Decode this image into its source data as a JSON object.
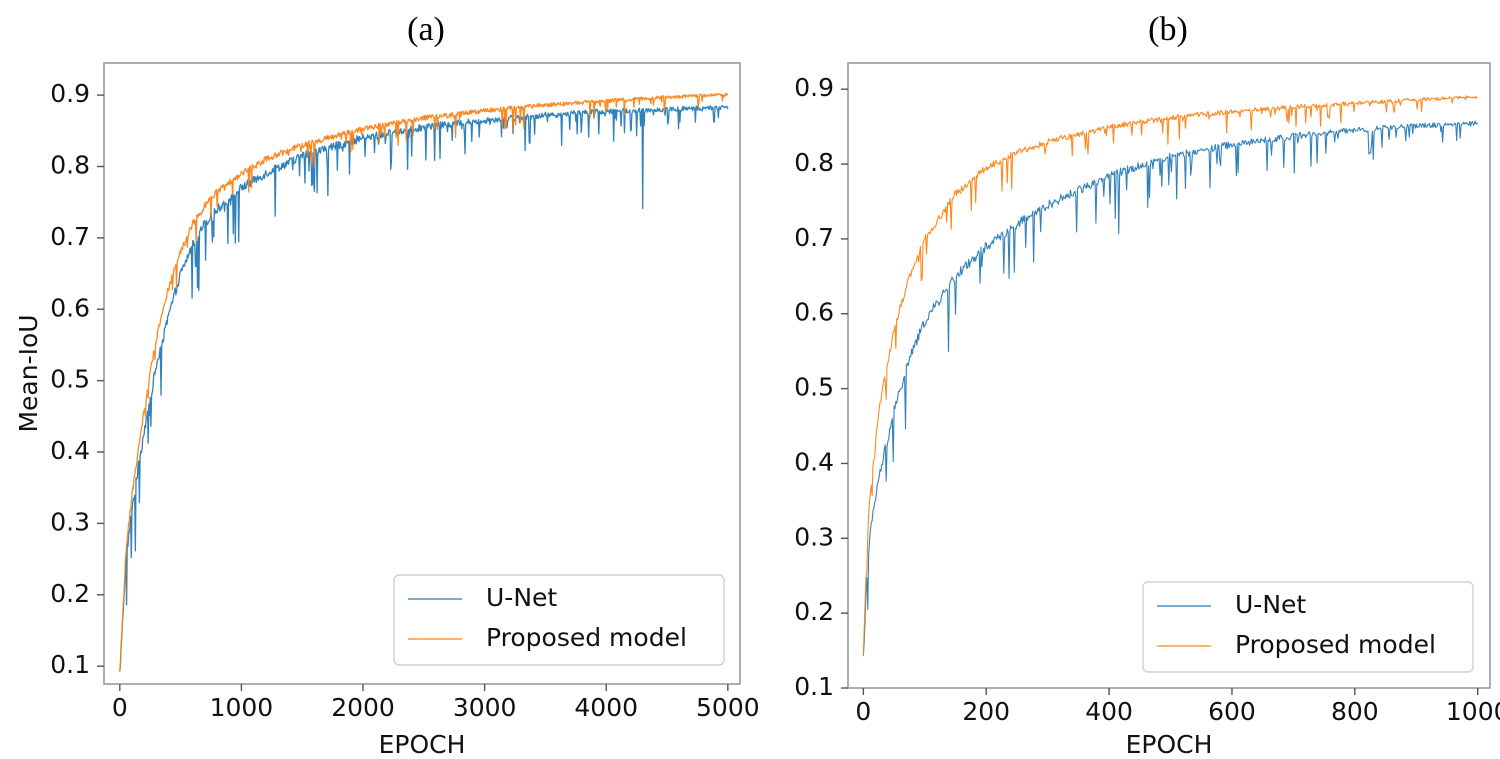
{
  "chart_data": [
    {
      "type": "line",
      "title": "(a)",
      "xlabel": "EPOCH",
      "ylabel": "Mean-IoU",
      "xlim": [
        -130,
        5100
      ],
      "ylim": [
        0.075,
        0.945
      ],
      "xticks": [
        0,
        1000,
        2000,
        3000,
        4000,
        5000
      ],
      "xtick_labels": [
        "0",
        "1000",
        "2000",
        "3000",
        "4000",
        "5000"
      ],
      "yticks": [
        0.1,
        0.2,
        0.3,
        0.4,
        0.5,
        0.6,
        0.7,
        0.8,
        0.9
      ],
      "ytick_labels": [
        "0.1",
        "0.2",
        "0.3",
        "0.4",
        "0.5",
        "0.6",
        "0.7",
        "0.8",
        "0.9"
      ],
      "legend_position": "lower-right",
      "x_max": 5000,
      "series": [
        {
          "name": "U-Net",
          "color": "#1f77b4",
          "x": [
            0,
            50,
            100,
            200,
            300,
            400,
            500,
            600,
            700,
            800,
            1000,
            1200,
            1500,
            2000,
            2500,
            3000,
            3500,
            4000,
            4500,
            5000
          ],
          "y": [
            0.09,
            0.25,
            0.32,
            0.43,
            0.52,
            0.59,
            0.65,
            0.69,
            0.72,
            0.74,
            0.77,
            0.79,
            0.815,
            0.84,
            0.855,
            0.865,
            0.872,
            0.877,
            0.88,
            0.883
          ]
        },
        {
          "name": "Proposed model",
          "color": "#ff7f0e",
          "x": [
            0,
            50,
            100,
            200,
            300,
            400,
            500,
            600,
            700,
            800,
            1000,
            1200,
            1500,
            2000,
            2500,
            3000,
            3500,
            4000,
            4500,
            5000
          ],
          "y": [
            0.09,
            0.26,
            0.34,
            0.46,
            0.56,
            0.63,
            0.68,
            0.72,
            0.745,
            0.765,
            0.79,
            0.81,
            0.83,
            0.853,
            0.868,
            0.878,
            0.886,
            0.892,
            0.897,
            0.901
          ]
        }
      ]
    },
    {
      "type": "line",
      "title": "(b)",
      "xlabel": "EPOCH",
      "ylabel": "",
      "xlim": [
        -25,
        1020
      ],
      "ylim": [
        0.1,
        0.935
      ],
      "xticks": [
        0,
        200,
        400,
        600,
        800,
        1000
      ],
      "xtick_labels": [
        "0",
        "200",
        "400",
        "600",
        "800",
        "1000"
      ],
      "yticks": [
        0.1,
        0.2,
        0.3,
        0.4,
        0.5,
        0.6,
        0.7,
        0.8,
        0.9
      ],
      "ytick_labels": [
        "0.1",
        "0.2",
        "0.3",
        "0.4",
        "0.5",
        "0.6",
        "0.7",
        "0.8",
        "0.9"
      ],
      "legend_position": "lower-right",
      "x_max": 1000,
      "series": [
        {
          "name": "U-Net",
          "color": "#1f77b4",
          "x": [
            0,
            5,
            10,
            25,
            50,
            75,
            100,
            150,
            200,
            250,
            300,
            400,
            500,
            600,
            700,
            800,
            900,
            1000
          ],
          "y": [
            0.14,
            0.24,
            0.3,
            0.38,
            0.47,
            0.54,
            0.59,
            0.65,
            0.69,
            0.72,
            0.745,
            0.785,
            0.81,
            0.826,
            0.837,
            0.845,
            0.851,
            0.855
          ]
        },
        {
          "name": "Proposed model",
          "color": "#ff7f0e",
          "x": [
            0,
            5,
            10,
            25,
            50,
            75,
            100,
            150,
            200,
            250,
            300,
            400,
            500,
            600,
            700,
            800,
            900,
            1000
          ],
          "y": [
            0.14,
            0.27,
            0.35,
            0.47,
            0.58,
            0.65,
            0.7,
            0.76,
            0.795,
            0.815,
            0.83,
            0.85,
            0.862,
            0.87,
            0.876,
            0.881,
            0.886,
            0.89
          ]
        }
      ]
    }
  ]
}
